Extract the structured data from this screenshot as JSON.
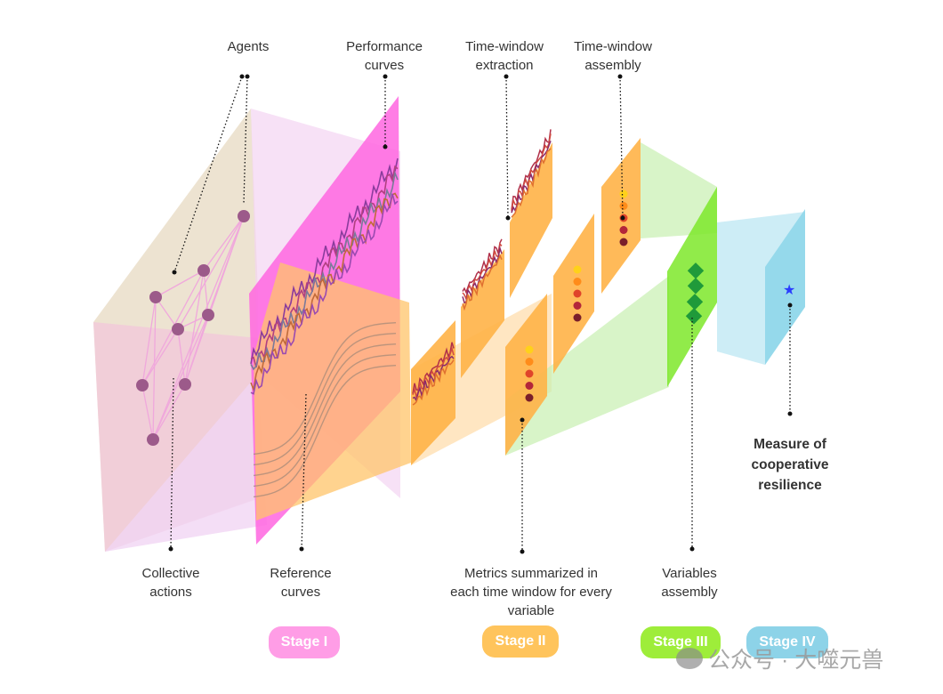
{
  "labels": {
    "agents": "Agents",
    "performance_curves": "Performance\ncurves",
    "time_window_extraction": "Time-window\nextraction",
    "time_window_assembly": "Time-window\nassembly",
    "collective_actions": "Collective\nactions",
    "reference_curves": "Reference\ncurves",
    "metrics_summarized": "Metrics summarized in\neach time window for every\nvariable",
    "variables_assembly": "Variables\nassembly",
    "measure": "Measure of\ncooperative\nresilience"
  },
  "stages": [
    {
      "label": "Stage I",
      "color": "#ff9de6"
    },
    {
      "label": "Stage II",
      "color": "#ffc45c"
    },
    {
      "label": "Stage III",
      "color": "#9eed3a"
    },
    {
      "label": "Stage IV",
      "color": "#8dd3e8"
    }
  ],
  "watermark": "公众号 · 大噬元兽",
  "colors": {
    "agent_node": "#9c5a8a",
    "network_edge": "#f0a8dc",
    "performance_panel": "#ff66e0",
    "orange_panel": "#ffb347",
    "green_panel": "#7ee82a",
    "blue_panel": "#8fd6ea",
    "star": "#2a3cff"
  }
}
